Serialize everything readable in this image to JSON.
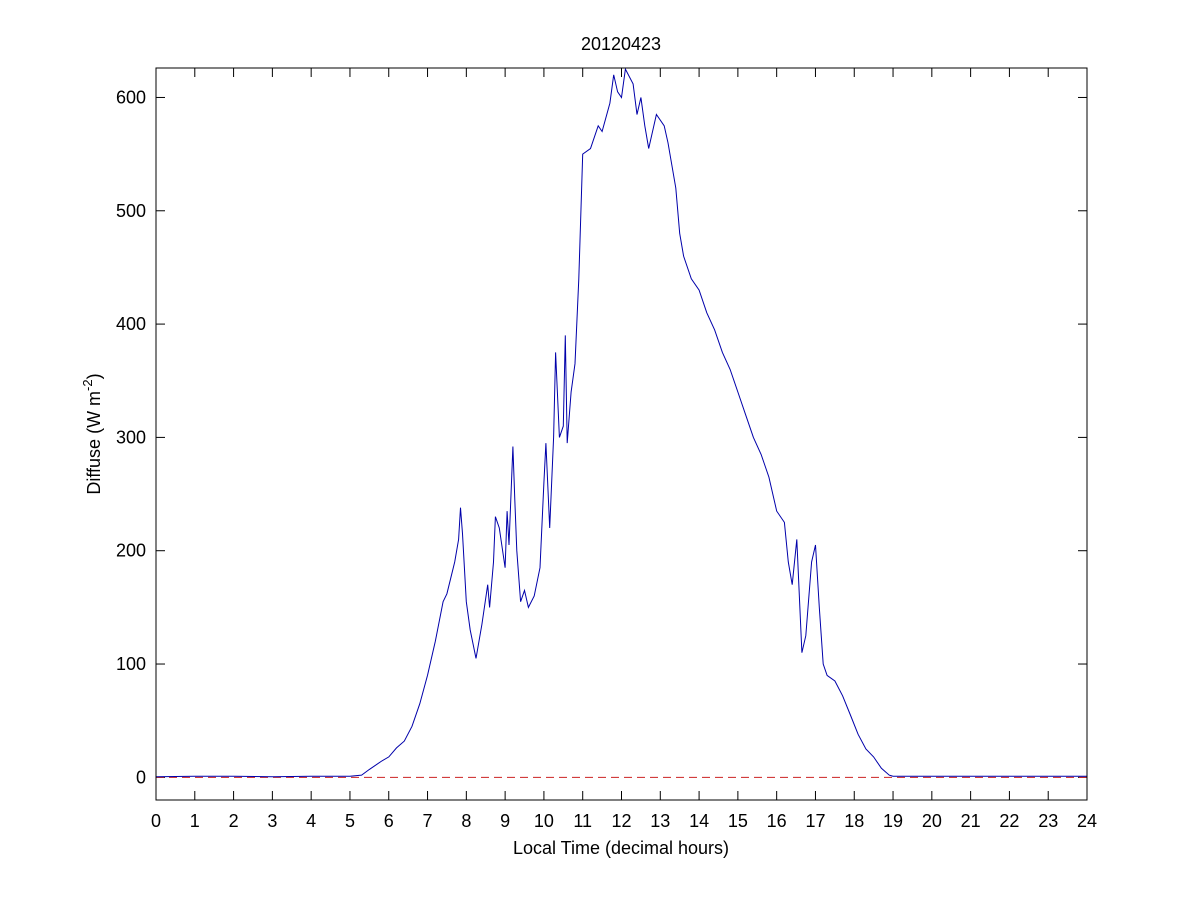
{
  "chart_data": {
    "type": "line",
    "title": "20120423",
    "xlabel": "Local Time (decimal hours)",
    "ylabel": {
      "text": "Diffuse (W m",
      "sup": "-2",
      "after": ")"
    },
    "xlim": [
      0,
      24
    ],
    "xticks": [
      0,
      1,
      2,
      3,
      4,
      5,
      6,
      7,
      8,
      9,
      10,
      11,
      12,
      13,
      14,
      15,
      16,
      17,
      18,
      19,
      20,
      21,
      22,
      23,
      24
    ],
    "ylim": [
      -20,
      626
    ],
    "yticks": [
      0,
      100,
      200,
      300,
      400,
      500,
      600
    ],
    "reference_line": {
      "value": 0,
      "color": "#cc2222",
      "style": "dashed"
    },
    "series": [
      {
        "color": "#0000aa",
        "x": [
          0,
          1,
          2,
          3,
          4,
          5,
          5.3,
          5.5,
          5.8,
          6,
          6.2,
          6.4,
          6.6,
          6.8,
          7,
          7.2,
          7.4,
          7.5,
          7.7,
          7.8,
          7.85,
          7.9,
          8,
          8.1,
          8.25,
          8.4,
          8.55,
          8.6,
          8.7,
          8.75,
          8.85,
          9,
          9.05,
          9.1,
          9.2,
          9.25,
          9.3,
          9.4,
          9.5,
          9.6,
          9.75,
          9.9,
          10,
          10.05,
          10.15,
          10.25,
          10.3,
          10.4,
          10.5,
          10.55,
          10.6,
          10.7,
          10.8,
          10.9,
          11,
          11.2,
          11.4,
          11.5,
          11.7,
          11.8,
          11.9,
          12,
          12.1,
          12.3,
          12.4,
          12.5,
          12.6,
          12.7,
          12.9,
          13.1,
          13.2,
          13.3,
          13.4,
          13.5,
          13.6,
          13.8,
          14,
          14.2,
          14.4,
          14.6,
          14.8,
          15,
          15.2,
          15.4,
          15.6,
          15.8,
          16,
          16.2,
          16.3,
          16.4,
          16.52,
          16.65,
          16.75,
          16.9,
          17,
          17.1,
          17.2,
          17.3,
          17.5,
          17.7,
          17.9,
          18.1,
          18.3,
          18.5,
          18.7,
          18.9,
          19,
          20,
          21,
          22,
          23,
          24
        ],
        "values": [
          0.5,
          1,
          1,
          0.5,
          1,
          1,
          2,
          7,
          14,
          18,
          26,
          32,
          45,
          65,
          90,
          120,
          155,
          162,
          190,
          210,
          238,
          215,
          155,
          130,
          105,
          135,
          170,
          150,
          190,
          230,
          220,
          185,
          235,
          205,
          292,
          245,
          200,
          155,
          165,
          150,
          160,
          185,
          260,
          295,
          220,
          300,
          375,
          300,
          310,
          390,
          295,
          340,
          365,
          440,
          550,
          555,
          575,
          570,
          595,
          620,
          605,
          600,
          625,
          612,
          585,
          600,
          575,
          555,
          585,
          575,
          560,
          540,
          520,
          480,
          460,
          440,
          430,
          410,
          395,
          375,
          360,
          340,
          320,
          300,
          285,
          265,
          235,
          225,
          190,
          170,
          210,
          110,
          125,
          190,
          205,
          150,
          100,
          90,
          85,
          72,
          55,
          38,
          25,
          18,
          8,
          2,
          1,
          1,
          1,
          1,
          1,
          1
        ]
      }
    ]
  }
}
